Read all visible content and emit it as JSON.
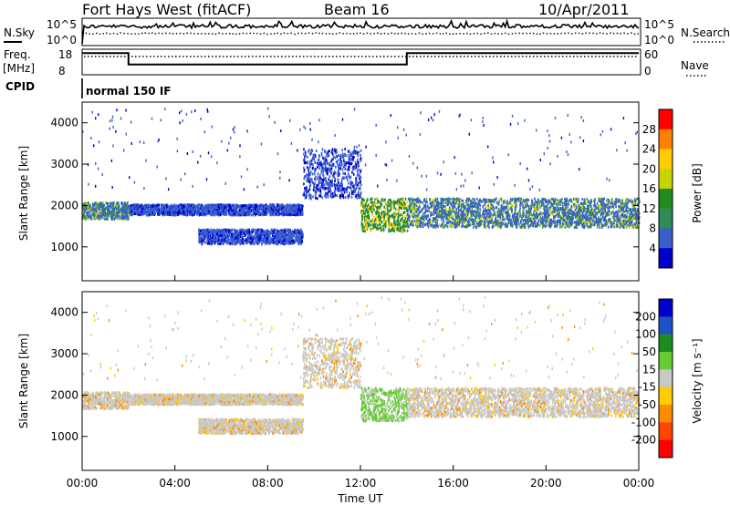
{
  "header": {
    "title": "Fort Hays West (fitACF)",
    "beam": "Beam 16",
    "date": "10/Apr/2011"
  },
  "noise_panel": {
    "left_label": "N.Sky",
    "right_label": "N.Search",
    "left_ticks": [
      "10^5",
      "10^0"
    ],
    "right_ticks": [
      "10^5",
      "10^0"
    ]
  },
  "freq_panel": {
    "left_label_1": "Freq.",
    "left_label_2": "[MHz]",
    "right_label": "Nave",
    "left_ticks": [
      "18",
      "8"
    ],
    "right_ticks": [
      "60",
      "0"
    ],
    "freq_segments": [
      {
        "start_hour": 0.0,
        "end_hour": 2.0,
        "freq_mhz": 16.5
      },
      {
        "start_hour": 2.0,
        "end_hour": 14.0,
        "freq_mhz": 12.0
      },
      {
        "start_hour": 14.0,
        "end_hour": 24.0,
        "freq_mhz": 16.5
      }
    ]
  },
  "cpid": {
    "label": "CPID",
    "value": "normal 150 IF"
  },
  "power_panel": {
    "ylabel": "Slant Range [km]",
    "colorbar_label": "Power [dB]",
    "colorbar_ticks": [
      "28",
      "24",
      "20",
      "16",
      "12",
      "8",
      "4"
    ],
    "colorbar_colors": [
      "#ff0000",
      "#ff7f00",
      "#ffcc00",
      "#c8d400",
      "#228b22",
      "#2e8b57",
      "#3a5fcd",
      "#0000cd"
    ]
  },
  "velocity_panel": {
    "ylabel": "Slant Range [km]",
    "colorbar_label": "Velocity [m s⁻¹]",
    "colorbar_ticks": [
      "200",
      "100",
      "50",
      "15",
      "-15",
      "-50",
      "-100",
      "-200"
    ],
    "colorbar_colors": [
      "#0000cd",
      "#2050c8",
      "#1e8b1e",
      "#66cc33",
      "#c8c8c8",
      "#ffcc00",
      "#ff8c00",
      "#ff4500",
      "#ff0000"
    ]
  },
  "y_ticks": [
    "4000",
    "3000",
    "2000",
    "1000"
  ],
  "x_ticks": [
    "00:00",
    "04:00",
    "08:00",
    "12:00",
    "16:00",
    "20:00",
    "00:00"
  ],
  "x_label": "Time UT",
  "chart_data": {
    "type": "heatmap",
    "x_unit": "hour UT",
    "xlim": [
      0,
      24
    ],
    "ylim": [
      180,
      4500
    ],
    "y_unit": "km",
    "power_bands": [
      {
        "t0": 0.0,
        "t1": 2.0,
        "r0": 1700,
        "r1": 2100,
        "level": "mixed"
      },
      {
        "t0": 2.0,
        "t1": 9.5,
        "r0": 1800,
        "r1": 2050,
        "level": "low"
      },
      {
        "t0": 5.0,
        "t1": 9.5,
        "r0": 1100,
        "r1": 1450,
        "level": "low"
      },
      {
        "t0": 9.5,
        "t1": 12.0,
        "r0": 2200,
        "r1": 3400,
        "level": "low"
      },
      {
        "t0": 12.0,
        "t1": 14.0,
        "r0": 1400,
        "r1": 2200,
        "level": "mid"
      },
      {
        "t0": 14.0,
        "t1": 24.0,
        "r0": 1500,
        "r1": 2200,
        "level": "mixed"
      }
    ]
  }
}
